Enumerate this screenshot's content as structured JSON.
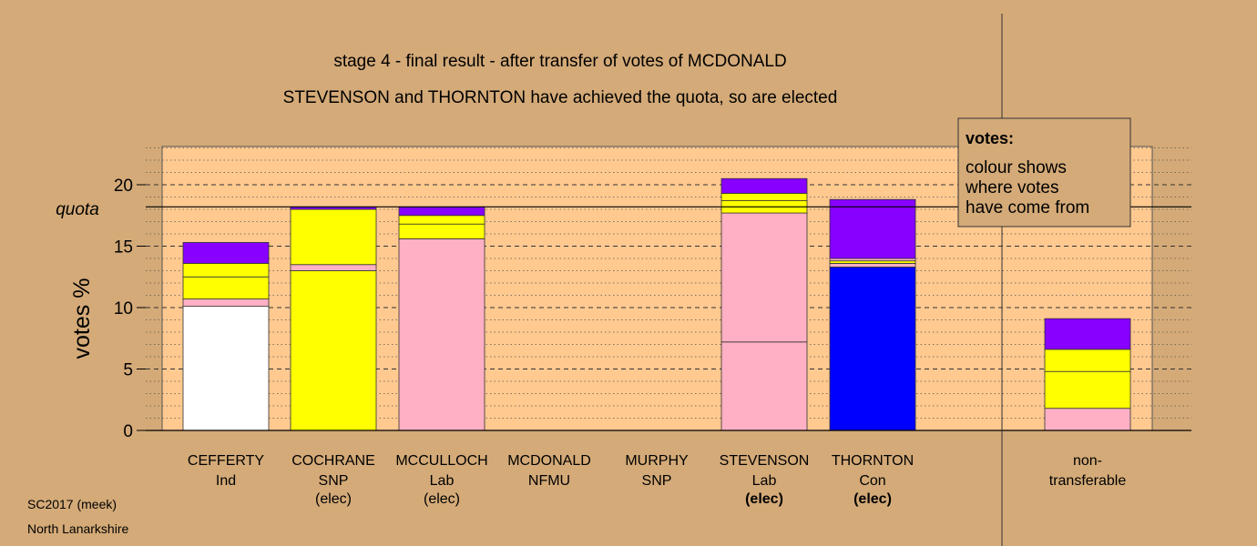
{
  "chart_data": {
    "type": "bar",
    "stacked": true,
    "title": "stage 4 - final result - after transfer of votes of MCDONALD",
    "subtitle": "STEVENSON and THORNTON have achieved the quota, so are elected",
    "ylabel": "votes %",
    "ylim": [
      0,
      23
    ],
    "yticks": [
      0,
      5,
      10,
      15,
      20
    ],
    "quota": 18.2,
    "quota_label": "quota",
    "grid": true,
    "candidates": [
      {
        "name": "CEFFERTY",
        "party": "Ind",
        "status": "",
        "segments": [
          {
            "value": 10.1,
            "color": "#ffffff"
          },
          {
            "value": 0.6,
            "color": "#ffb0c4"
          },
          {
            "value": 1.8,
            "color": "#ffff00"
          },
          {
            "value": 1.1,
            "color": "#ffff00"
          },
          {
            "value": 1.7,
            "color": "#8800ff"
          }
        ]
      },
      {
        "name": "COCHRANE",
        "party": "SNP",
        "status": "(elec)",
        "segments": [
          {
            "value": 13.0,
            "color": "#ffff00"
          },
          {
            "value": 0.5,
            "color": "#ffb0c4"
          },
          {
            "value": 4.5,
            "color": "#ffff00"
          },
          {
            "value": 0.2,
            "color": "#8800ff"
          }
        ]
      },
      {
        "name": "MCCULLOCH",
        "party": "Lab",
        "status": "(elec)",
        "segments": [
          {
            "value": 15.6,
            "color": "#ffb0c4"
          },
          {
            "value": 1.2,
            "color": "#ffff00"
          },
          {
            "value": 0.7,
            "color": "#ffff00"
          },
          {
            "value": 0.7,
            "color": "#8800ff"
          }
        ]
      },
      {
        "name": "MCDONALD",
        "party": "NFMU",
        "status": "",
        "segments": []
      },
      {
        "name": "MURPHY",
        "party": "SNP",
        "status": "",
        "segments": []
      },
      {
        "name": "STEVENSON",
        "party": "Lab",
        "status": "(elec)",
        "segments": [
          {
            "value": 7.2,
            "color": "#ffb0c4"
          },
          {
            "value": 10.5,
            "color": "#ffb0c4"
          },
          {
            "value": 1.0,
            "color": "#ffff00"
          },
          {
            "value": 0.6,
            "color": "#ffff00"
          },
          {
            "value": 1.2,
            "color": "#8800ff"
          }
        ]
      },
      {
        "name": "THORNTON",
        "party": "Con",
        "status": "(elec)",
        "segments": [
          {
            "value": 13.3,
            "color": "#0000ff"
          },
          {
            "value": 0.3,
            "color": "#ffb0c4"
          },
          {
            "value": 0.2,
            "color": "#ffff00"
          },
          {
            "value": 0.2,
            "color": "#ffb0c4"
          },
          {
            "value": 4.8,
            "color": "#8800ff"
          }
        ]
      }
    ],
    "non_transferable": {
      "label_line1": "non-",
      "label_line2": "transferable",
      "segments": [
        {
          "value": 1.8,
          "color": "#ffb0c4"
        },
        {
          "value": 3.0,
          "color": "#ffff00"
        },
        {
          "value": 1.8,
          "color": "#ffff00"
        },
        {
          "value": 2.5,
          "color": "#8800ff"
        }
      ]
    },
    "legend": {
      "title": "votes:",
      "lines": [
        "colour shows",
        "where votes",
        "have come from"
      ],
      "placement": "top-right"
    }
  },
  "footer": {
    "line1": "SC2017 (meek)",
    "line2": "North Lanarkshire"
  },
  "colors": {
    "background": "#d4aa78",
    "plot_area": "#ffc990"
  }
}
